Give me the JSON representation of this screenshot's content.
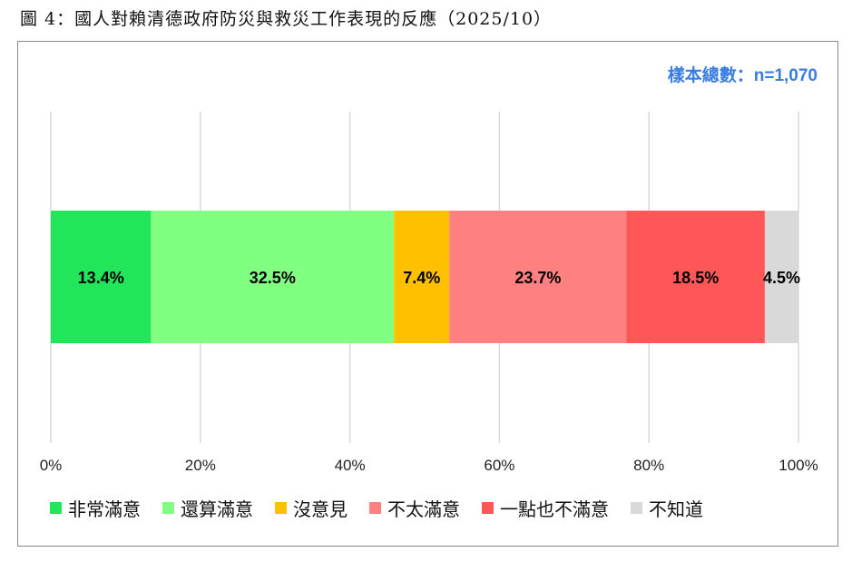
{
  "figure": {
    "title": "圖 4：國人對賴清德政府防災與救災工作表現的反應（2025/10）",
    "sample_note": "樣本總數：n=1,070"
  },
  "chart_data": {
    "type": "bar",
    "orientation": "horizontal",
    "stacked": true,
    "categories": [
      ""
    ],
    "series": [
      {
        "name": "非常滿意",
        "values": [
          13.4
        ],
        "label": "13.4%",
        "color": "#22e65a"
      },
      {
        "name": "還算滿意",
        "values": [
          32.5
        ],
        "label": "32.5%",
        "color": "#80ff80"
      },
      {
        "name": "沒意見",
        "values": [
          7.4
        ],
        "label": "7.4%",
        "color": "#ffc000"
      },
      {
        "name": "不太滿意",
        "values": [
          23.7
        ],
        "label": "23.7%",
        "color": "#ff8080"
      },
      {
        "name": "一點也不滿意",
        "values": [
          18.5
        ],
        "label": "18.5%",
        "color": "#ff5757"
      },
      {
        "name": "不知道",
        "values": [
          4.5
        ],
        "label": "4.5%",
        "color": "#d9d9d9"
      }
    ],
    "xlim": [
      0,
      100
    ],
    "xticks": [
      "0%",
      "20%",
      "40%",
      "60%",
      "80%",
      "100%"
    ],
    "xtick_values": [
      0,
      20,
      40,
      60,
      80,
      100
    ],
    "grid": true,
    "legend_position": "bottom"
  }
}
